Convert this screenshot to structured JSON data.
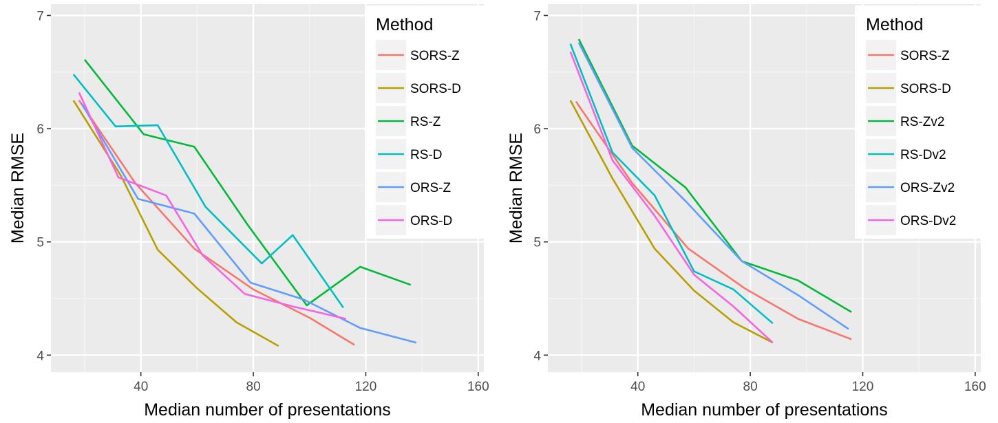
{
  "chart_data": [
    {
      "type": "line",
      "xlabel": "Median number of presentations",
      "ylabel": "Median RMSE",
      "xlim": [
        8,
        162
      ],
      "ylim": [
        3.85,
        7.1
      ],
      "xticks": [
        40,
        80,
        120,
        160
      ],
      "yticks": [
        4,
        5,
        6,
        7
      ],
      "grid": true,
      "legend": {
        "title": "Method",
        "position": "top-right"
      },
      "series": [
        {
          "name": "SORS-Z",
          "color": "#F8766D",
          "points": [
            [
              18,
              6.25
            ],
            [
              38,
              5.52
            ],
            [
              59,
              4.94
            ],
            [
              80,
              4.58
            ],
            [
              100,
              4.33
            ],
            [
              116,
              4.09
            ]
          ]
        },
        {
          "name": "SORS-D",
          "color": "#B79F00",
          "points": [
            [
              16,
              6.25
            ],
            [
              33,
              5.58
            ],
            [
              46,
              4.93
            ],
            [
              60,
              4.59
            ],
            [
              74,
              4.29
            ],
            [
              89,
              4.08
            ]
          ]
        },
        {
          "name": "RS-Z",
          "color": "#00BA38",
          "points": [
            [
              20,
              6.61
            ],
            [
              41,
              5.95
            ],
            [
              59,
              5.84
            ],
            [
              78,
              5.15
            ],
            [
              99,
              4.44
            ],
            [
              118,
              4.78
            ],
            [
              136,
              4.62
            ]
          ]
        },
        {
          "name": "RS-D",
          "color": "#00BFC4",
          "points": [
            [
              16,
              6.48
            ],
            [
              31,
              6.02
            ],
            [
              46,
              6.03
            ],
            [
              63,
              5.31
            ],
            [
              83,
              4.81
            ],
            [
              94,
              5.06
            ],
            [
              112,
              4.42
            ]
          ]
        },
        {
          "name": "ORS-Z",
          "color": "#619CFF",
          "points": [
            [
              19,
              6.22
            ],
            [
              39,
              5.38
            ],
            [
              59,
              5.25
            ],
            [
              79,
              4.64
            ],
            [
              98,
              4.49
            ],
            [
              118,
              4.24
            ],
            [
              138,
              4.11
            ]
          ]
        },
        {
          "name": "ORS-D",
          "color": "#F564E3",
          "points": [
            [
              18,
              6.32
            ],
            [
              32,
              5.57
            ],
            [
              49,
              5.41
            ],
            [
              62,
              4.88
            ],
            [
              77,
              4.54
            ],
            [
              94,
              4.43
            ],
            [
              113,
              4.32
            ]
          ]
        }
      ]
    },
    {
      "type": "line",
      "xlabel": "Median number of presentations",
      "ylabel": "Median RMSE",
      "xlim": [
        8,
        162
      ],
      "ylim": [
        3.85,
        7.1
      ],
      "xticks": [
        40,
        80,
        120,
        160
      ],
      "yticks": [
        4,
        5,
        6,
        7
      ],
      "grid": true,
      "legend": {
        "title": "Method",
        "position": "top-right"
      },
      "series": [
        {
          "name": "SORS-Z",
          "color": "#F8766D",
          "points": [
            [
              18,
              6.24
            ],
            [
              38,
              5.52
            ],
            [
              58,
              4.94
            ],
            [
              78,
              4.59
            ],
            [
              97,
              4.32
            ],
            [
              116,
              4.14
            ]
          ]
        },
        {
          "name": "SORS-D",
          "color": "#B79F00",
          "points": [
            [
              16,
              6.25
            ],
            [
              31,
              5.56
            ],
            [
              46,
              4.94
            ],
            [
              60,
              4.57
            ],
            [
              74,
              4.29
            ],
            [
              88,
              4.11
            ]
          ]
        },
        {
          "name": "RS-Zv2",
          "color": "#00BA38",
          "points": [
            [
              19,
              6.79
            ],
            [
              38,
              5.85
            ],
            [
              57,
              5.48
            ],
            [
              77,
              4.83
            ],
            [
              97,
              4.66
            ],
            [
              116,
              4.38
            ]
          ]
        },
        {
          "name": "RS-Dv2",
          "color": "#00BFC4",
          "points": [
            [
              16,
              6.75
            ],
            [
              31,
              5.79
            ],
            [
              46,
              5.41
            ],
            [
              60,
              4.74
            ],
            [
              74,
              4.58
            ],
            [
              88,
              4.28
            ]
          ]
        },
        {
          "name": "ORS-Zv2",
          "color": "#619CFF",
          "points": [
            [
              19,
              6.76
            ],
            [
              38,
              5.83
            ],
            [
              57,
              5.36
            ],
            [
              77,
              4.83
            ],
            [
              97,
              4.53
            ],
            [
              115,
              4.23
            ]
          ]
        },
        {
          "name": "ORS-Dv2",
          "color": "#F564E3",
          "points": [
            [
              16,
              6.68
            ],
            [
              31,
              5.72
            ],
            [
              46,
              5.23
            ],
            [
              60,
              4.71
            ],
            [
              74,
              4.43
            ],
            [
              88,
              4.11
            ]
          ]
        }
      ]
    }
  ]
}
